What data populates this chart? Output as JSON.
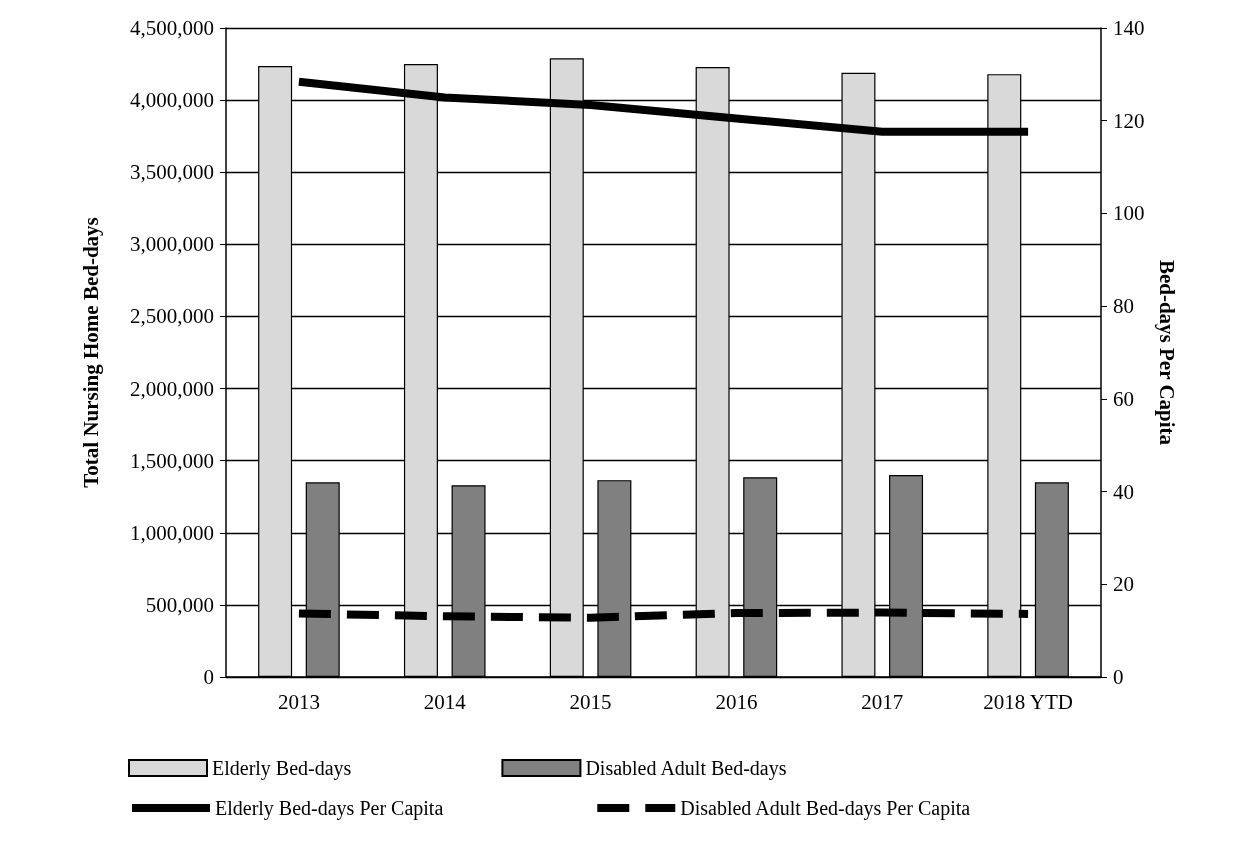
{
  "chart_data": {
    "type": "bar",
    "categories": [
      "2013",
      "2014",
      "2015",
      "2016",
      "2017",
      "2018 YTD"
    ],
    "ylabel": "Total Nursing Home Bed-days",
    "y2label": "Bed-days Per Capita",
    "ylim": [
      0,
      4500000
    ],
    "yticks": [
      0,
      {
        "value": 500000,
        "label": "500,000"
      },
      {
        "value": 1000000,
        "label": "1,000,000"
      },
      {
        "value": 1500000,
        "label": "1,500,000"
      },
      {
        "value": 2000000,
        "label": "2,000,000"
      },
      {
        "value": 2500000,
        "label": "2,500,000"
      },
      {
        "value": 3000000,
        "label": "3,000,000"
      },
      {
        "value": 3500000,
        "label": "3,500,000"
      },
      {
        "value": 4000000,
        "label": "4,000,000"
      },
      {
        "value": 4500000,
        "label": "4,500,000"
      }
    ],
    "y2lim": [
      0,
      140
    ],
    "y2ticks": [
      0,
      20,
      40,
      60,
      80,
      100,
      120,
      140
    ],
    "grid": "y",
    "legend": "bottom",
    "series": [
      {
        "name": "Elderly Bed-days",
        "color": "#d9d9d9",
        "values": [
          4237000,
          4250000,
          4290000,
          4230000,
          4190000,
          4180000
        ]
      },
      {
        "name": "Disabled Adult Bed-days",
        "color": "#808080",
        "values": [
          1350000,
          1330000,
          1365000,
          1385000,
          1400000,
          1350000
        ]
      },
      {
        "name": "Elderly Bed-days Per Capita",
        "type": "line",
        "axis": "y2",
        "color": "#000000",
        "line_style": "solid",
        "values": [
          128.4,
          125.0,
          123.4,
          120.5,
          117.6,
          117.6
        ]
      },
      {
        "name": "Disabled Adult Bed-days Per Capita",
        "type": "line",
        "axis": "y2",
        "color": "#000000",
        "line_style": "dashed",
        "values": [
          13.7,
          13.1,
          12.8,
          13.8,
          13.9,
          13.6
        ]
      }
    ]
  }
}
